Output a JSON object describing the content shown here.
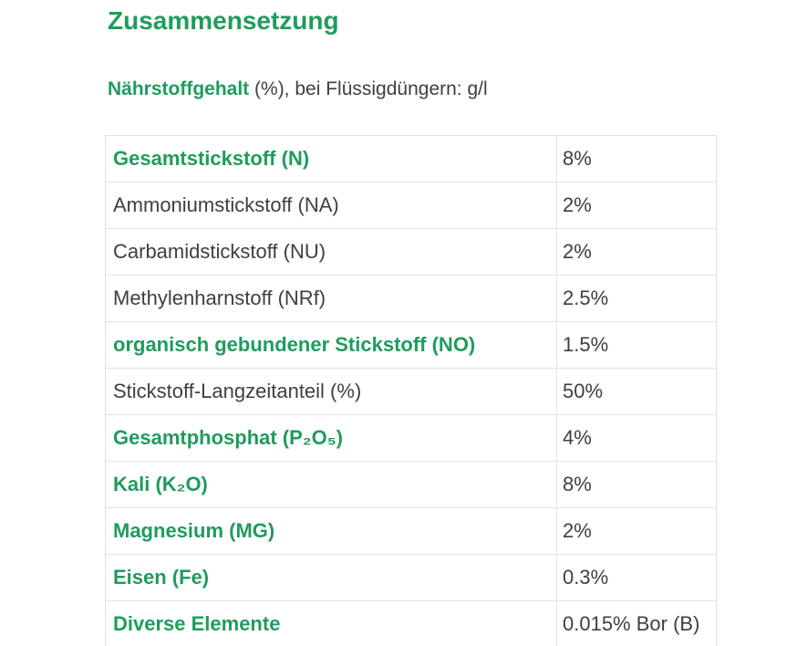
{
  "page": {
    "title": "Zusammensetzung",
    "subtitle": {
      "emphasis": "Nährstoffgehalt",
      "rest": " (%), bei Flüssigdüngern: g/l"
    }
  },
  "colors": {
    "accent_green": "#1f9c5c",
    "text_dark": "#3f3f3f",
    "table_border": "#e2e2e2",
    "background": "#ffffff"
  },
  "table": {
    "columns": [
      "nutrient",
      "amount"
    ],
    "rows": [
      {
        "label": "Gesamtstickstoff (N)",
        "value": "8%",
        "highlight": true
      },
      {
        "label": "Ammoniumstickstoff (NA)",
        "value": "2%",
        "highlight": false
      },
      {
        "label": "Carbamidstickstoff (NU)",
        "value": "2%",
        "highlight": false
      },
      {
        "label": "Methylenharnstoff (NRf)",
        "value": "2.5%",
        "highlight": false
      },
      {
        "label": "organisch gebundener Stickstoff (NO)",
        "value": "1.5%",
        "highlight": true
      },
      {
        "label": "Stickstoff-Langzeitanteil (%)",
        "value": "50%",
        "highlight": false
      },
      {
        "label": "Gesamtphosphat (P₂O₅)",
        "value": "4%",
        "highlight": true
      },
      {
        "label": "Kali (K₂O)",
        "value": "8%",
        "highlight": true
      },
      {
        "label": "Magnesium (MG)",
        "value": "2%",
        "highlight": true
      },
      {
        "label": "Eisen (Fe)",
        "value": "0.3%",
        "highlight": true
      },
      {
        "label": "Diverse Elemente",
        "value": "0.015% Bor (B)",
        "highlight": true
      }
    ]
  }
}
